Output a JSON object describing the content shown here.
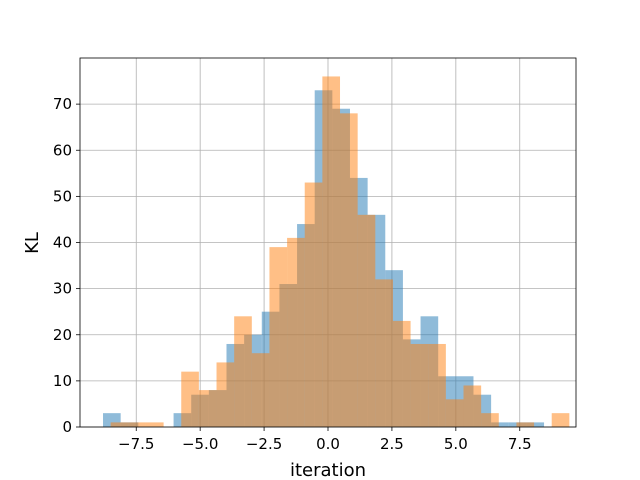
{
  "chart_data": {
    "type": "bar",
    "title": "",
    "xlabel": "iteration",
    "ylabel": "KL",
    "xlim": [
      -9.7,
      9.7
    ],
    "ylim": [
      0,
      80
    ],
    "xticks": [
      -7.5,
      -5.0,
      -2.5,
      0.0,
      2.5,
      5.0,
      7.5
    ],
    "xtick_labels": [
      "−7.5",
      "−5.0",
      "−2.5",
      "0.0",
      "2.5",
      "5.0",
      "7.5"
    ],
    "yticks": [
      0,
      10,
      20,
      30,
      40,
      50,
      60,
      70
    ],
    "ytick_labels": [
      "0",
      "10",
      "20",
      "30",
      "40",
      "50",
      "60",
      "70"
    ],
    "grid": true,
    "legend": "none",
    "series": [
      {
        "color": "#1f77b4",
        "opacity": 0.5,
        "bin_start": -8.8,
        "bin_width": 0.69,
        "counts": [
          3,
          1,
          0,
          0,
          3,
          7,
          8,
          18,
          20,
          25,
          31,
          44,
          73,
          69,
          54,
          46,
          34,
          19,
          24,
          11,
          11,
          7,
          1,
          1,
          1
        ]
      },
      {
        "color": "#ff7f0e",
        "opacity": 0.5,
        "bin_start": -8.5,
        "bin_width": 0.69,
        "counts": [
          1,
          1,
          1,
          0,
          12,
          8,
          14,
          24,
          16,
          39,
          41,
          53,
          76,
          68,
          46,
          32,
          23,
          18,
          18,
          6,
          9,
          3,
          0,
          1,
          0,
          3
        ]
      }
    ]
  }
}
